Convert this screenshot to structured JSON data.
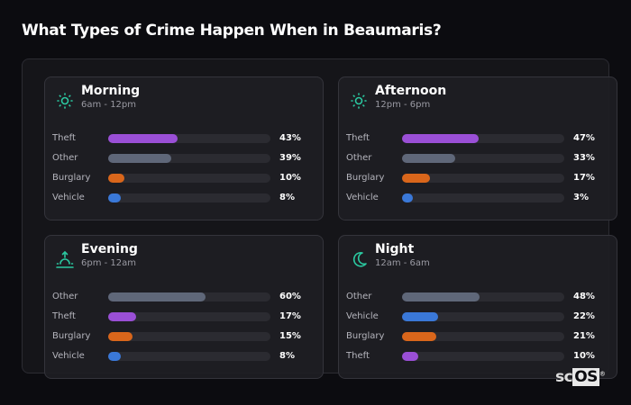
{
  "title": "What Types of Crime Happen When in Beaumaris?",
  "colors": {
    "Theft": "#9a4fd6",
    "Other": "#5f6779",
    "Burglary": "#d9661b",
    "Vehicle": "#3a78d8",
    "accent": "#2bc8a0"
  },
  "cards": [
    {
      "name": "Morning",
      "range": "6am - 12pm",
      "icon": "sun-icon",
      "rows": [
        {
          "label": "Theft",
          "value": 43,
          "text": "43%"
        },
        {
          "label": "Other",
          "value": 39,
          "text": "39%"
        },
        {
          "label": "Burglary",
          "value": 10,
          "text": "10%"
        },
        {
          "label": "Vehicle",
          "value": 8,
          "text": "8%"
        }
      ]
    },
    {
      "name": "Afternoon",
      "range": "12pm - 6pm",
      "icon": "sun-icon",
      "rows": [
        {
          "label": "Theft",
          "value": 47,
          "text": "47%"
        },
        {
          "label": "Other",
          "value": 33,
          "text": "33%"
        },
        {
          "label": "Burglary",
          "value": 17,
          "text": "17%"
        },
        {
          "label": "Vehicle",
          "value": 3,
          "text": "3%"
        }
      ]
    },
    {
      "name": "Evening",
      "range": "6pm - 12am",
      "icon": "sunrise-icon",
      "rows": [
        {
          "label": "Other",
          "value": 60,
          "text": "60%"
        },
        {
          "label": "Theft",
          "value": 17,
          "text": "17%"
        },
        {
          "label": "Burglary",
          "value": 15,
          "text": "15%"
        },
        {
          "label": "Vehicle",
          "value": 8,
          "text": "8%"
        }
      ]
    },
    {
      "name": "Night",
      "range": "12am - 6am",
      "icon": "moon-icon",
      "rows": [
        {
          "label": "Other",
          "value": 48,
          "text": "48%"
        },
        {
          "label": "Vehicle",
          "value": 22,
          "text": "22%"
        },
        {
          "label": "Burglary",
          "value": 21,
          "text": "21%"
        },
        {
          "label": "Theft",
          "value": 10,
          "text": "10%"
        }
      ]
    }
  ],
  "logo": {
    "sc": "sc",
    "os": "OS",
    "reg": "®"
  }
}
